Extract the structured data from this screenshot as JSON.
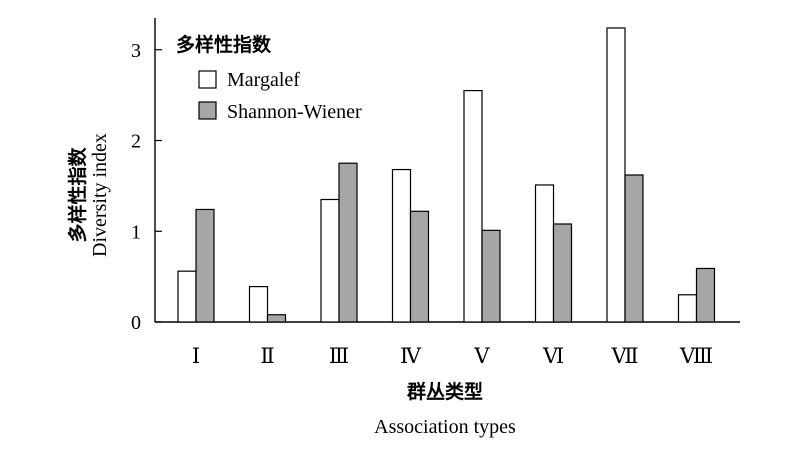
{
  "chart_data": {
    "type": "bar",
    "title": "",
    "categories": [
      "Ⅰ",
      "Ⅱ",
      "Ⅲ",
      "Ⅳ",
      "Ⅴ",
      "Ⅵ",
      "Ⅶ",
      "Ⅷ"
    ],
    "series": [
      {
        "name": "Margalef",
        "values": [
          0.56,
          0.39,
          1.35,
          1.68,
          2.55,
          1.51,
          3.24,
          0.3
        ],
        "color": "#ffffff"
      },
      {
        "name": "Shannon-Wiener",
        "values": [
          1.24,
          0.08,
          1.75,
          1.22,
          1.01,
          1.08,
          1.62,
          0.59
        ],
        "color": "#a6a6a6"
      }
    ],
    "legend_title": "多样性指数",
    "legend_position": "top-left",
    "ylabel_cn": "多样性指数",
    "ylabel_en": "Diversity index",
    "xlabel_cn": "群丛类型",
    "xlabel_en": "Association types",
    "ylim": [
      0,
      3.35
    ],
    "yticks": [
      "0",
      "1",
      "2",
      "3"
    ],
    "grid": false
  }
}
